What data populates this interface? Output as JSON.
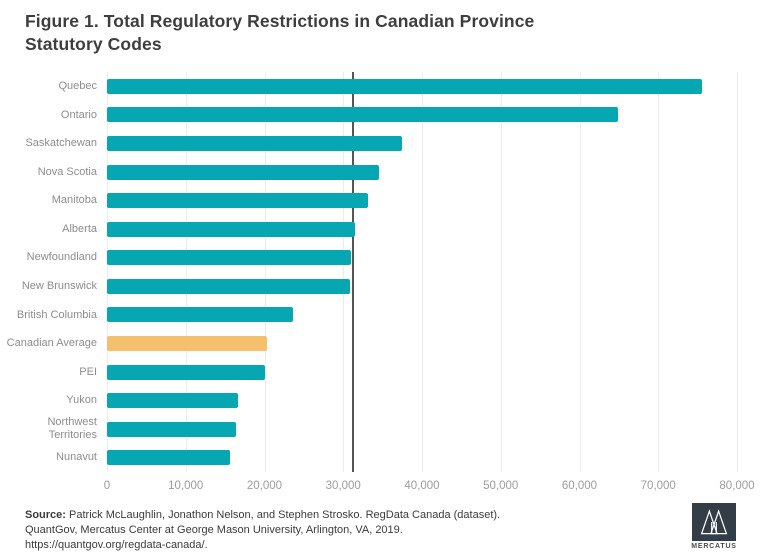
{
  "figure": {
    "title_line1": "Figure 1. Total Regulatory Restrictions in Canadian Province",
    "title_line2": "Statutory Codes"
  },
  "chart_data": {
    "type": "bar",
    "orientation": "horizontal",
    "title": "Figure 1. Total Regulatory Restrictions in Canadian Province Statutory Codes",
    "categories": [
      "Quebec",
      "Ontario",
      "Saskatchewan",
      "Nova Scotia",
      "Manitoba",
      "Alberta",
      "Newfoundland",
      "New Brunswick",
      "British Columbia",
      "Canadian Average",
      "PEI",
      "Yukon",
      "Northwest Territories",
      "Nunavut"
    ],
    "values": [
      75600,
      64900,
      37500,
      34500,
      33100,
      31500,
      31000,
      30800,
      23600,
      20300,
      20100,
      16600,
      16400,
      15600
    ],
    "highlight_category": "Canadian Average",
    "highlight_index": 9,
    "bar_color": "#06a7b3",
    "highlight_color": "#f4c06d",
    "reference_line_value": 31200,
    "reference_line_color": "#555555",
    "xlim": [
      0,
      80000
    ],
    "x_ticks": [
      0,
      10000,
      20000,
      30000,
      40000,
      50000,
      60000,
      70000,
      80000
    ],
    "x_tick_labels": [
      "0",
      "10,000",
      "20,000",
      "30,000",
      "40,000",
      "50,000",
      "60,000",
      "70,000",
      "80,000"
    ],
    "xlabel": "",
    "ylabel": "",
    "grid": true,
    "legend": false
  },
  "source": {
    "label": "Source:",
    "line1_rest": " Patrick McLaughlin, Jonathon Nelson, and Stephen Strosko. RegData Canada (dataset).",
    "line2": "QuantGov, Mercatus Center at George Mason University,  Arlington, VA, 2019.",
    "line3": "https://quantgov.org/regdata-canada/."
  },
  "logo": {
    "text": "MERCATUS",
    "square_color": "#333d48"
  }
}
